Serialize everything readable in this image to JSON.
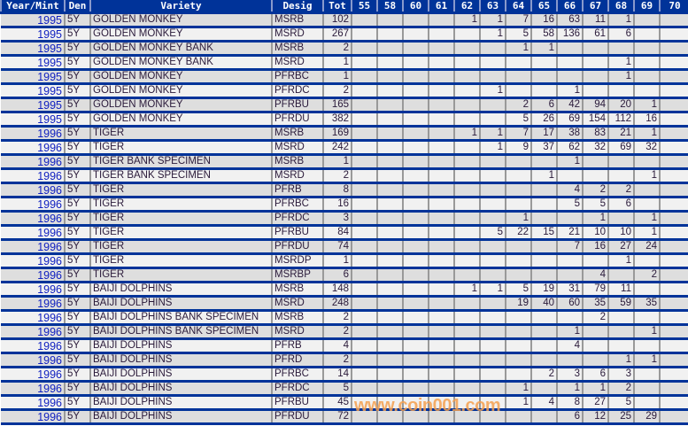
{
  "headers": [
    "Year/Mint",
    "Den",
    "Variety",
    "Desig",
    "Tot",
    "55",
    "58",
    "60",
    "61",
    "62",
    "63",
    "64",
    "65",
    "66",
    "67",
    "68",
    "69",
    "70"
  ],
  "rows": [
    {
      "year": "1995",
      "den": "5Y",
      "variety": "GOLDEN MONKEY",
      "desig": "MSRB",
      "tot": "102",
      "g": [
        "",
        "",
        "",
        "",
        "1",
        "1",
        "7",
        "16",
        "63",
        "11",
        "1",
        "",
        ""
      ]
    },
    {
      "year": "1995",
      "den": "5Y",
      "variety": "GOLDEN MONKEY",
      "desig": "MSRD",
      "tot": "267",
      "g": [
        "",
        "",
        "",
        "",
        "",
        "1",
        "5",
        "58",
        "136",
        "61",
        "6",
        "",
        ""
      ]
    },
    {
      "year": "1995",
      "den": "5Y",
      "variety": "GOLDEN MONKEY BANK",
      "desig": "MSRB",
      "tot": "2",
      "g": [
        "",
        "",
        "",
        "",
        "",
        "",
        "1",
        "1",
        "",
        "",
        "",
        "",
        ""
      ]
    },
    {
      "year": "1995",
      "den": "5Y",
      "variety": "GOLDEN MONKEY BANK",
      "desig": "MSRD",
      "tot": "1",
      "g": [
        "",
        "",
        "",
        "",
        "",
        "",
        "",
        "",
        "",
        "",
        "1",
        "",
        ""
      ]
    },
    {
      "year": "1995",
      "den": "5Y",
      "variety": "GOLDEN MONKEY",
      "desig": "PFRBC",
      "tot": "1",
      "g": [
        "",
        "",
        "",
        "",
        "",
        "",
        "",
        "",
        "",
        "",
        "1",
        "",
        ""
      ]
    },
    {
      "year": "1995",
      "den": "5Y",
      "variety": "GOLDEN MONKEY",
      "desig": "PFRDC",
      "tot": "2",
      "g": [
        "",
        "",
        "",
        "",
        "",
        "1",
        "",
        "",
        "1",
        "",
        "",
        "",
        ""
      ]
    },
    {
      "year": "1995",
      "den": "5Y",
      "variety": "GOLDEN MONKEY",
      "desig": "PFRBU",
      "tot": "165",
      "g": [
        "",
        "",
        "",
        "",
        "",
        "",
        "2",
        "6",
        "42",
        "94",
        "20",
        "1",
        ""
      ]
    },
    {
      "year": "1995",
      "den": "5Y",
      "variety": "GOLDEN MONKEY",
      "desig": "PFRDU",
      "tot": "382",
      "g": [
        "",
        "",
        "",
        "",
        "",
        "",
        "5",
        "26",
        "69",
        "154",
        "112",
        "16",
        ""
      ]
    },
    {
      "year": "1996",
      "den": "5Y",
      "variety": "TIGER",
      "desig": "MSRB",
      "tot": "169",
      "g": [
        "",
        "",
        "",
        "",
        "1",
        "1",
        "7",
        "17",
        "38",
        "83",
        "21",
        "1",
        ""
      ]
    },
    {
      "year": "1996",
      "den": "5Y",
      "variety": "TIGER",
      "desig": "MSRD",
      "tot": "242",
      "g": [
        "",
        "",
        "",
        "",
        "",
        "1",
        "9",
        "37",
        "62",
        "32",
        "69",
        "32",
        ""
      ]
    },
    {
      "year": "1996",
      "den": "5Y",
      "variety": "TIGER BANK SPECIMEN",
      "desig": "MSRB",
      "tot": "1",
      "g": [
        "",
        "",
        "",
        "",
        "",
        "",
        "",
        "",
        "1",
        "",
        "",
        "",
        ""
      ]
    },
    {
      "year": "1996",
      "den": "5Y",
      "variety": "TIGER BANK SPECIMEN",
      "desig": "MSRD",
      "tot": "2",
      "g": [
        "",
        "",
        "",
        "",
        "",
        "",
        "",
        "1",
        "",
        "",
        "",
        "1",
        ""
      ]
    },
    {
      "year": "1996",
      "den": "5Y",
      "variety": "TIGER",
      "desig": "PFRB",
      "tot": "8",
      "g": [
        "",
        "",
        "",
        "",
        "",
        "",
        "",
        "",
        "4",
        "2",
        "2",
        "",
        ""
      ]
    },
    {
      "year": "1996",
      "den": "5Y",
      "variety": "TIGER",
      "desig": "PFRBC",
      "tot": "16",
      "g": [
        "",
        "",
        "",
        "",
        "",
        "",
        "",
        "",
        "5",
        "5",
        "6",
        "",
        ""
      ]
    },
    {
      "year": "1996",
      "den": "5Y",
      "variety": "TIGER",
      "desig": "PFRDC",
      "tot": "3",
      "g": [
        "",
        "",
        "",
        "",
        "",
        "",
        "1",
        "",
        "",
        "1",
        "",
        "1",
        ""
      ]
    },
    {
      "year": "1996",
      "den": "5Y",
      "variety": "TIGER",
      "desig": "PFRBU",
      "tot": "84",
      "g": [
        "",
        "",
        "",
        "",
        "",
        "5",
        "22",
        "15",
        "21",
        "10",
        "10",
        "1",
        ""
      ]
    },
    {
      "year": "1996",
      "den": "5Y",
      "variety": "TIGER",
      "desig": "PFRDU",
      "tot": "74",
      "g": [
        "",
        "",
        "",
        "",
        "",
        "",
        "",
        "",
        "7",
        "16",
        "27",
        "24",
        ""
      ]
    },
    {
      "year": "1996",
      "den": "5Y",
      "variety": "TIGER",
      "desig": "MSRDP",
      "tot": "1",
      "g": [
        "",
        "",
        "",
        "",
        "",
        "",
        "",
        "",
        "",
        "",
        "1",
        "",
        ""
      ]
    },
    {
      "year": "1996",
      "den": "5Y",
      "variety": "TIGER",
      "desig": "MSRBP",
      "tot": "6",
      "g": [
        "",
        "",
        "",
        "",
        "",
        "",
        "",
        "",
        "",
        "4",
        "",
        "2",
        ""
      ]
    },
    {
      "year": "1996",
      "den": "5Y",
      "variety": "BAIJI DOLPHINS",
      "desig": "MSRB",
      "tot": "148",
      "g": [
        "",
        "",
        "",
        "",
        "1",
        "1",
        "5",
        "19",
        "31",
        "79",
        "11",
        "",
        ""
      ]
    },
    {
      "year": "1996",
      "den": "5Y",
      "variety": "BAIJI DOLPHINS",
      "desig": "MSRD",
      "tot": "248",
      "g": [
        "",
        "",
        "",
        "",
        "",
        "",
        "19",
        "40",
        "60",
        "35",
        "59",
        "35",
        ""
      ]
    },
    {
      "year": "1996",
      "den": "5Y",
      "variety": "BAIJI DOLPHINS BANK SPECIMEN",
      "desig": "MSRB",
      "tot": "2",
      "g": [
        "",
        "",
        "",
        "",
        "",
        "",
        "",
        "",
        "",
        "2",
        "",
        "",
        ""
      ]
    },
    {
      "year": "1996",
      "den": "5Y",
      "variety": "BAIJI DOLPHINS BANK SPECIMEN",
      "desig": "MSRD",
      "tot": "2",
      "g": [
        "",
        "",
        "",
        "",
        "",
        "",
        "",
        "",
        "1",
        "",
        "",
        "1",
        ""
      ]
    },
    {
      "year": "1996",
      "den": "5Y",
      "variety": "BAIJI DOLPHINS",
      "desig": "PFRB",
      "tot": "4",
      "g": [
        "",
        "",
        "",
        "",
        "",
        "",
        "",
        "",
        "4",
        "",
        "",
        "",
        ""
      ]
    },
    {
      "year": "1996",
      "den": "5Y",
      "variety": "BAIJI DOLPHINS",
      "desig": "PFRD",
      "tot": "2",
      "g": [
        "",
        "",
        "",
        "",
        "",
        "",
        "",
        "",
        "",
        "",
        "1",
        "1",
        ""
      ]
    },
    {
      "year": "1996",
      "den": "5Y",
      "variety": "BAIJI DOLPHINS",
      "desig": "PFRBC",
      "tot": "14",
      "g": [
        "",
        "",
        "",
        "",
        "",
        "",
        "",
        "2",
        "3",
        "6",
        "3",
        "",
        ""
      ]
    },
    {
      "year": "1996",
      "den": "5Y",
      "variety": "BAIJI DOLPHINS",
      "desig": "PFRDC",
      "tot": "5",
      "g": [
        "",
        "",
        "",
        "",
        "",
        "",
        "1",
        "",
        "1",
        "1",
        "2",
        "",
        ""
      ]
    },
    {
      "year": "1996",
      "den": "5Y",
      "variety": "BAIJI DOLPHINS",
      "desig": "PFRBU",
      "tot": "45",
      "g": [
        "",
        "",
        "",
        "",
        "",
        "",
        "1",
        "4",
        "8",
        "27",
        "5",
        "",
        ""
      ]
    },
    {
      "year": "1996",
      "den": "5Y",
      "variety": "BAIJI DOLPHINS",
      "desig": "PFRDU",
      "tot": "72",
      "g": [
        "",
        "",
        "",
        "",
        "",
        "",
        "",
        "",
        "6",
        "12",
        "25",
        "29",
        ""
      ]
    }
  ],
  "watermark": "www.coin001.com",
  "colors": {
    "header": "#003399",
    "year_link": "#1020c0",
    "row_odd": "#dedede",
    "row_even": "#f1f1f1"
  }
}
